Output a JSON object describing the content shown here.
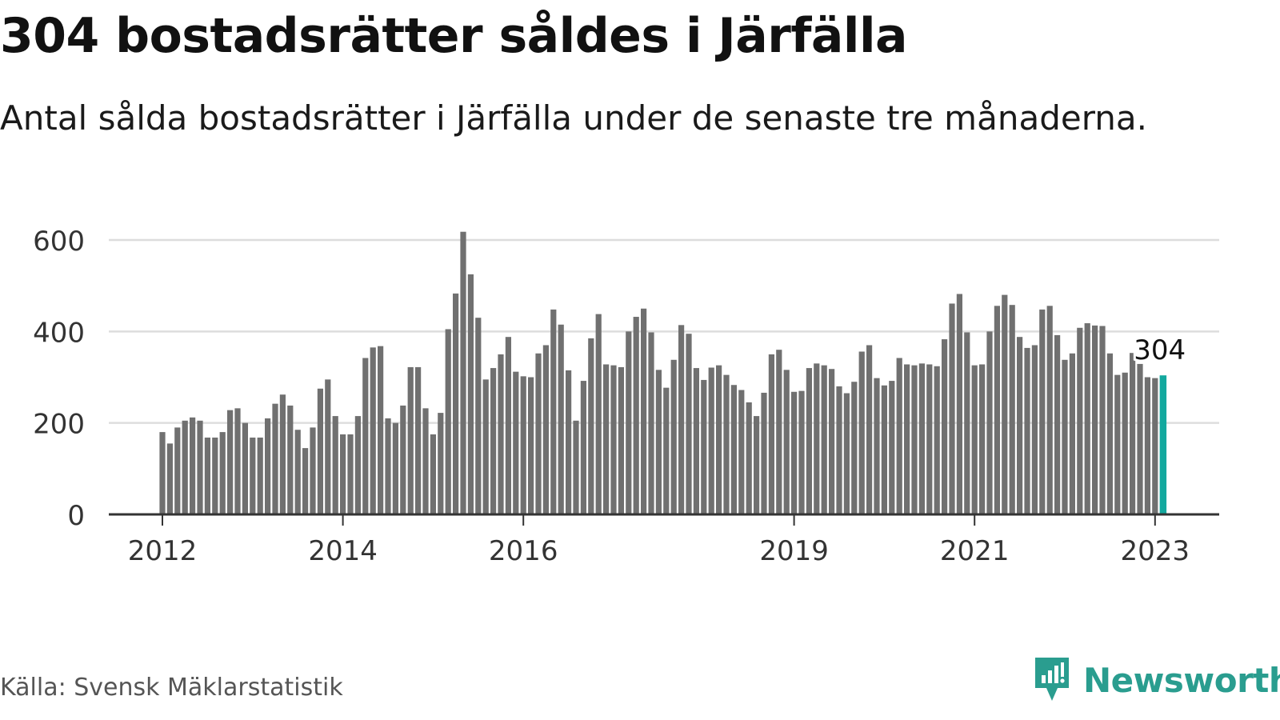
{
  "title": "304 bostadsrätter såldes i Järfälla",
  "subtitle": "Antal sålda bostadsrätter i Järfälla under de senaste tre månaderna.",
  "source": "Källa: Svensk Mäklarstatistik",
  "brand": {
    "name": "Newsworthy",
    "icon": "newsworthy-logo-icon"
  },
  "colors": {
    "bar": "#707070",
    "highlight": "#13a89e",
    "grid": "#dddddd",
    "axis": "#333333",
    "brand": "#2a9d8f"
  },
  "chart_data": {
    "type": "bar",
    "x_unit": "month",
    "x_start": "2012-01",
    "ylim": [
      0,
      620
    ],
    "y_ticks": [
      0,
      200,
      400,
      600
    ],
    "x_tick_labels": [
      {
        "label": "2012",
        "month": "2012-01"
      },
      {
        "label": "2014",
        "month": "2014-01"
      },
      {
        "label": "2016",
        "month": "2016-01"
      },
      {
        "label": "2019",
        "month": "2019-01"
      },
      {
        "label": "2021",
        "month": "2021-01"
      },
      {
        "label": "2023",
        "month": "2023-01"
      }
    ],
    "grid": true,
    "values": [
      180,
      155,
      190,
      205,
      212,
      205,
      168,
      168,
      180,
      228,
      232,
      200,
      168,
      168,
      210,
      242,
      262,
      238,
      185,
      145,
      190,
      275,
      295,
      215,
      175,
      175,
      215,
      342,
      365,
      368,
      210,
      200,
      238,
      322,
      322,
      232,
      175,
      222,
      405,
      483,
      618,
      525,
      430,
      295,
      320,
      350,
      388,
      312,
      302,
      300,
      352,
      370,
      448,
      415,
      315,
      205,
      292,
      385,
      438,
      328,
      326,
      322,
      400,
      432,
      450,
      398,
      316,
      277,
      338,
      414,
      395,
      320,
      294,
      321,
      326,
      305,
      283,
      272,
      245,
      215,
      266,
      350,
      360,
      316,
      268,
      270,
      320,
      330,
      326,
      318,
      280,
      265,
      290,
      356,
      370,
      298,
      282,
      292,
      342,
      328,
      326,
      330,
      328,
      324,
      383,
      461,
      482,
      398,
      326,
      328,
      400,
      456,
      480,
      458,
      388,
      364,
      370,
      448,
      456,
      392,
      338,
      352,
      408,
      418,
      413,
      412,
      352,
      305,
      310,
      353,
      329,
      300,
      298,
      304
    ],
    "highlight_last": true,
    "last_value_label": "304"
  }
}
